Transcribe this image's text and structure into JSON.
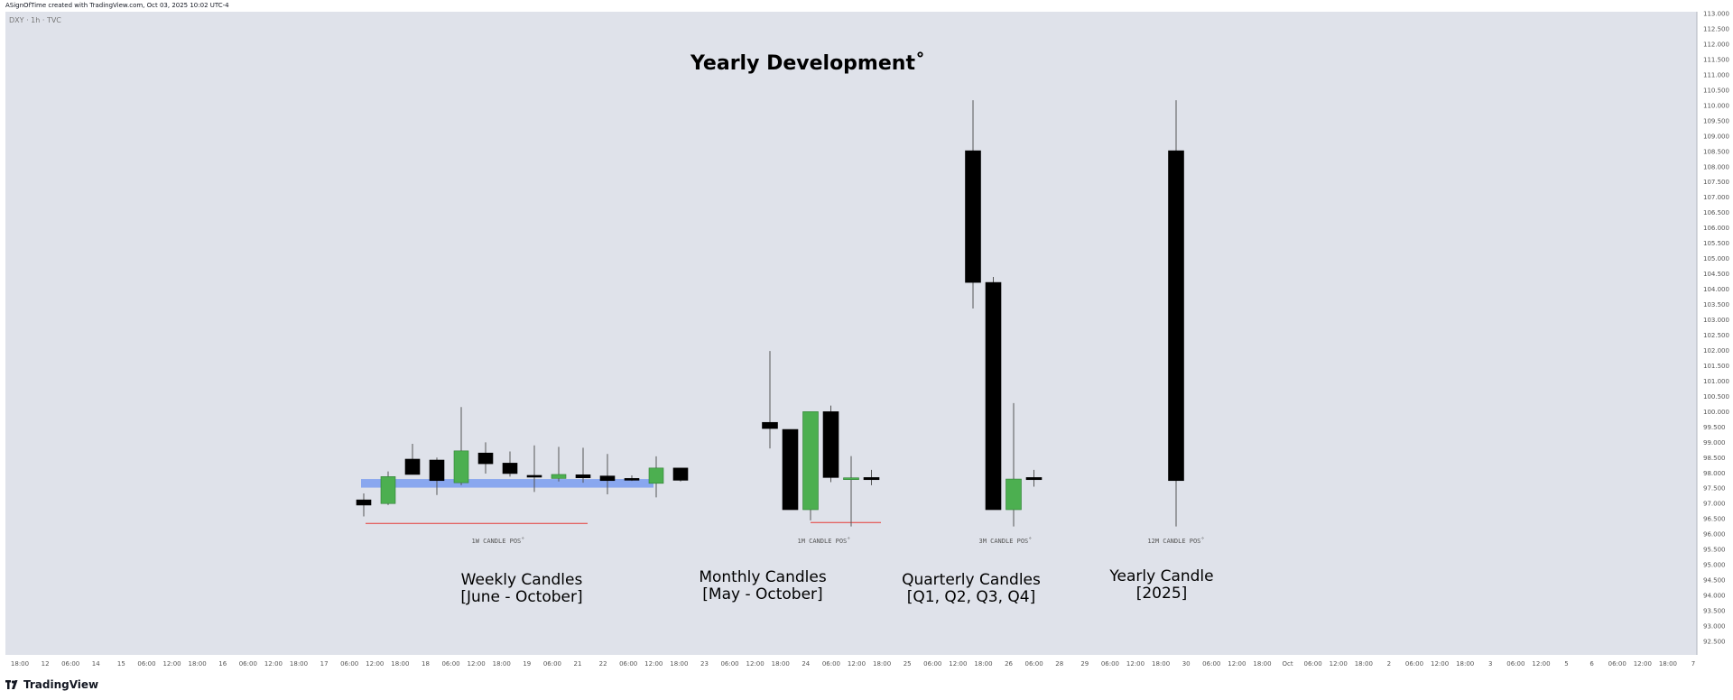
{
  "header": {
    "credit": "ASignOfTime created with TradingView.com, Oct 03, 2025 10:02 UTC-4"
  },
  "symbol_label": "DXY · 1h · TVC",
  "brand": {
    "name": "TradingView",
    "icon": "tradingview-logo-icon"
  },
  "colors": {
    "background": "#dfe2ea",
    "bull": "#4caf50",
    "bear": "#000000",
    "wick": "#555555",
    "support_zone": "#7a9cf0",
    "range_line": "#e53935"
  },
  "chart_data": {
    "type": "candlestick",
    "title": "Yearly Development˚",
    "ylim": [
      92.0,
      113.5
    ],
    "y_ticks": [
      "113.000",
      "112.500",
      "112.000",
      "111.500",
      "111.000",
      "110.500",
      "110.000",
      "109.500",
      "109.000",
      "108.500",
      "108.000",
      "107.500",
      "107.000",
      "106.500",
      "106.000",
      "105.500",
      "105.000",
      "104.500",
      "104.000",
      "103.500",
      "103.000",
      "102.500",
      "102.000",
      "101.500",
      "101.000",
      "100.500",
      "100.000",
      "99.500",
      "99.000",
      "98.500",
      "98.000",
      "97.500",
      "97.000",
      "96.500",
      "96.000",
      "95.500",
      "95.000",
      "94.500",
      "94.000",
      "93.500",
      "93.000",
      "92.500"
    ],
    "x_ticks": [
      "18:00",
      "12",
      "06:00",
      "14",
      "15",
      "06:00",
      "12:00",
      "18:00",
      "16",
      "06:00",
      "12:00",
      "18:00",
      "17",
      "06:00",
      "12:00",
      "18:00",
      "18",
      "06:00",
      "12:00",
      "18:00",
      "19",
      "06:00",
      "21",
      "22",
      "06:00",
      "12:00",
      "18:00",
      "23",
      "06:00",
      "12:00",
      "18:00",
      "24",
      "06:00",
      "12:00",
      "18:00",
      "25",
      "06:00",
      "12:00",
      "18:00",
      "26",
      "06:00",
      "28",
      "29",
      "06:00",
      "12:00",
      "18:00",
      "30",
      "06:00",
      "12:00",
      "18:00",
      "Oct",
      "06:00",
      "12:00",
      "18:00",
      "2",
      "06:00",
      "12:00",
      "18:00",
      "3",
      "06:00",
      "12:00",
      "5",
      "6",
      "06:00",
      "12:00",
      "18:00",
      "7"
    ],
    "groups": [
      {
        "name": "weekly",
        "label_line1": "Weekly Candles",
        "label_line2": "[June - October]",
        "pos_label": "1W CANDLE POS˚",
        "candles": [
          {
            "o": 97.12,
            "h": 97.33,
            "l": 96.58,
            "c": 96.95
          },
          {
            "o": 97.0,
            "h": 98.05,
            "l": 96.95,
            "c": 97.88
          },
          {
            "o": 98.45,
            "h": 98.95,
            "l": 97.95,
            "c": 97.95
          },
          {
            "o": 98.42,
            "h": 98.5,
            "l": 97.28,
            "c": 97.75
          },
          {
            "o": 97.68,
            "h": 100.15,
            "l": 97.6,
            "c": 98.72
          },
          {
            "o": 98.65,
            "h": 99.0,
            "l": 97.98,
            "c": 98.3
          },
          {
            "o": 98.32,
            "h": 98.7,
            "l": 97.88,
            "c": 97.98
          },
          {
            "o": 97.92,
            "h": 98.9,
            "l": 97.38,
            "c": 97.88
          },
          {
            "o": 97.82,
            "h": 98.85,
            "l": 97.72,
            "c": 97.95
          },
          {
            "o": 97.94,
            "h": 98.82,
            "l": 97.68,
            "c": 97.84
          },
          {
            "o": 97.9,
            "h": 98.62,
            "l": 97.3,
            "c": 97.75
          },
          {
            "o": 97.82,
            "h": 97.92,
            "l": 97.74,
            "c": 97.8
          },
          {
            "o": 97.66,
            "h": 98.54,
            "l": 97.2,
            "c": 98.16
          },
          {
            "o": 98.16,
            "h": 98.16,
            "l": 97.72,
            "c": 97.76
          }
        ],
        "zone": {
          "from": 97.52,
          "to": 97.8
        },
        "range_line": {
          "y": 96.35
        }
      },
      {
        "name": "monthly",
        "label_line1": "Monthly Candles",
        "label_line2": "[May - October]",
        "pos_label": "1M CANDLE POS˚",
        "candles": [
          {
            "o": 99.65,
            "h": 101.98,
            "l": 98.8,
            "c": 99.45
          },
          {
            "o": 99.42,
            "h": 99.42,
            "l": 96.8,
            "c": 96.8
          },
          {
            "o": 96.8,
            "h": 100.0,
            "l": 96.45,
            "c": 100.0
          },
          {
            "o": 100.0,
            "h": 100.2,
            "l": 97.7,
            "c": 97.85
          },
          {
            "o": 97.84,
            "h": 98.55,
            "l": 96.25,
            "c": 97.84
          },
          {
            "o": 97.85,
            "h": 98.1,
            "l": 97.6,
            "c": 97.78
          }
        ],
        "range_line": {
          "y": 96.38
        }
      },
      {
        "name": "quarterly",
        "label_line1": "Quarterly Candles",
        "label_line2": "[Q1, Q2, Q3, Q4]",
        "pos_label": "3M CANDLE POS˚",
        "candles": [
          {
            "o": 108.52,
            "h": 110.17,
            "l": 103.37,
            "c": 104.22
          },
          {
            "o": 104.22,
            "h": 104.4,
            "l": 96.8,
            "c": 96.8
          },
          {
            "o": 96.8,
            "h": 100.28,
            "l": 96.25,
            "c": 97.8
          },
          {
            "o": 97.85,
            "h": 98.1,
            "l": 97.55,
            "c": 97.78
          }
        ]
      },
      {
        "name": "yearly",
        "label_line1": "Yearly Candle",
        "label_line2": "[2025]",
        "pos_label": "12M CANDLE POS˚",
        "candles": [
          {
            "o": 108.52,
            "h": 110.17,
            "l": 96.25,
            "c": 97.75
          }
        ]
      }
    ]
  }
}
